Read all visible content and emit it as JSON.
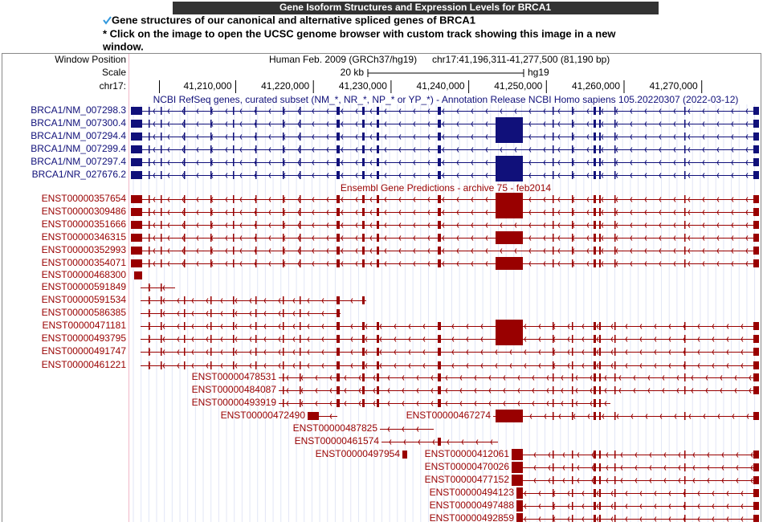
{
  "header": {
    "title": "Gene Isoform Structures and Expression Levels for BRCA1"
  },
  "intro": {
    "line1": "Gene structures of our canonical and alternative spliced genes of BRCA1",
    "line2a": "* Click on the image to open the UCSC genome browser with custom track showing this image in a new",
    "line2b": "window."
  },
  "browser": {
    "labels": {
      "window_position": "Window Position",
      "scale": "Scale",
      "chrom": "chr17:"
    },
    "assembly": "Human Feb. 2009 (GRCh37/hg19)",
    "position": "chr17:41,196,311-41,277,500 (81,190 bp)",
    "scale_text": "20 kb",
    "scale_db": "hg19",
    "ruler": [
      "41,210,000",
      "41,220,000",
      "41,230,000",
      "41,240,000",
      "41,250,000",
      "41,260,000",
      "41,270,000"
    ],
    "tracks": [
      {
        "title": "NCBI RefSeq genes, curated subset (NM_*, NR_*, NP_* or YP_*) - Annotation Release NCBI Homo sapiens 105.20220307 (2022-03-12)",
        "transcripts": [
          "BRCA1/NM_007298.3",
          "BRCA1/NM_007300.4",
          "BRCA1/NM_007294.4",
          "BRCA1/NM_007299.4",
          "BRCA1/NM_007297.4",
          "BRCA1/NR_027676.2"
        ]
      },
      {
        "title": "Ensembl Gene Predictions - archive 75 - feb2014",
        "transcripts": [
          "ENST00000357654",
          "ENST00000309486",
          "ENST00000351666",
          "ENST00000346315",
          "ENST00000352993",
          "ENST00000354071",
          "ENST00000468300",
          "ENST00000591849",
          "ENST00000591534",
          "ENST00000586385",
          "ENST00000471181",
          "ENST00000493795",
          "ENST00000491747",
          "ENST00000461221",
          "ENST00000478531",
          "ENST00000484087",
          "ENST00000493919",
          "ENST00000472490",
          "ENST00000467274",
          "ENST00000487825",
          "ENST00000461574",
          "ENST00000497954",
          "ENST00000412061",
          "ENST00000470026",
          "ENST00000477152",
          "ENST00000494123",
          "ENST00000497488",
          "ENST00000492859"
        ]
      }
    ]
  }
}
